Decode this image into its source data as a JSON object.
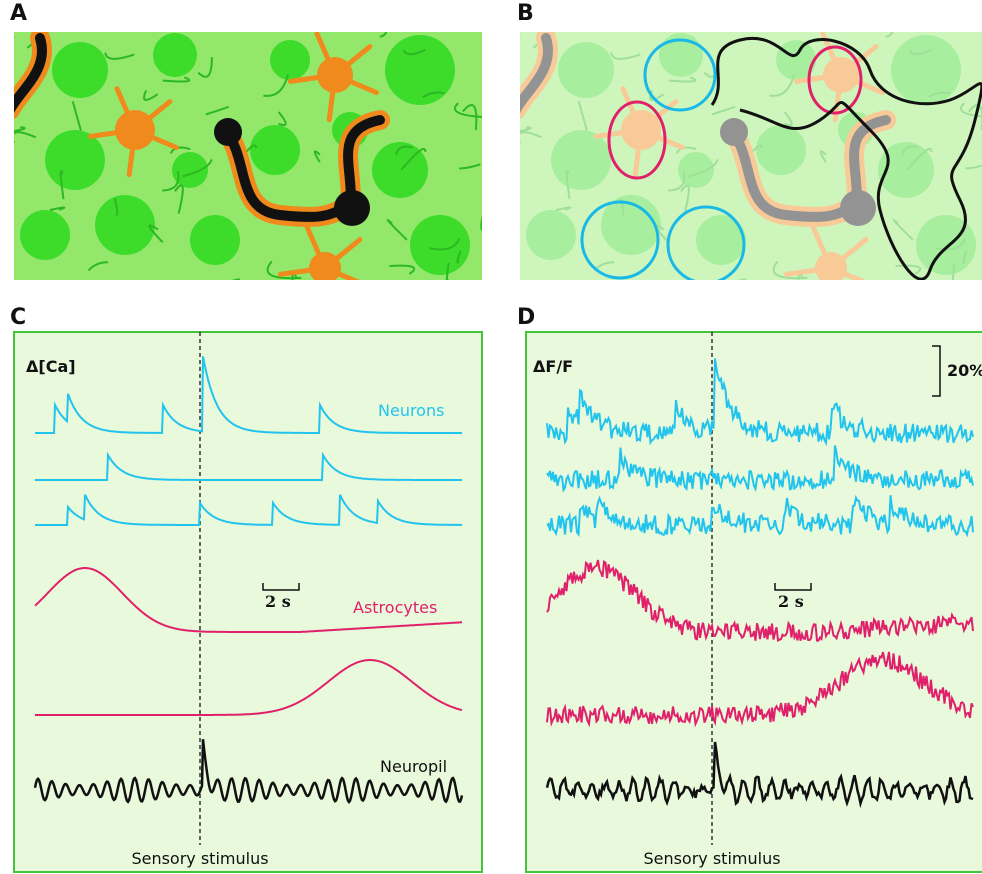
{
  "panels": [
    {
      "label": "A"
    },
    {
      "label": "B"
    },
    {
      "label": "C",
      "y_label": "Δ[Ca]",
      "neurons_label": "Neurons",
      "scale_time": "2 s",
      "astrocytes_label": "Astrocytes",
      "neuropil_label": "Neuropil",
      "stimulus_label": "Sensory stimulus"
    },
    {
      "label": "D",
      "y_label": "ΔF/F",
      "scale_amplitude": "20%",
      "scale_time": "2 s",
      "stimulus_label": "Sensory stimulus"
    }
  ]
}
